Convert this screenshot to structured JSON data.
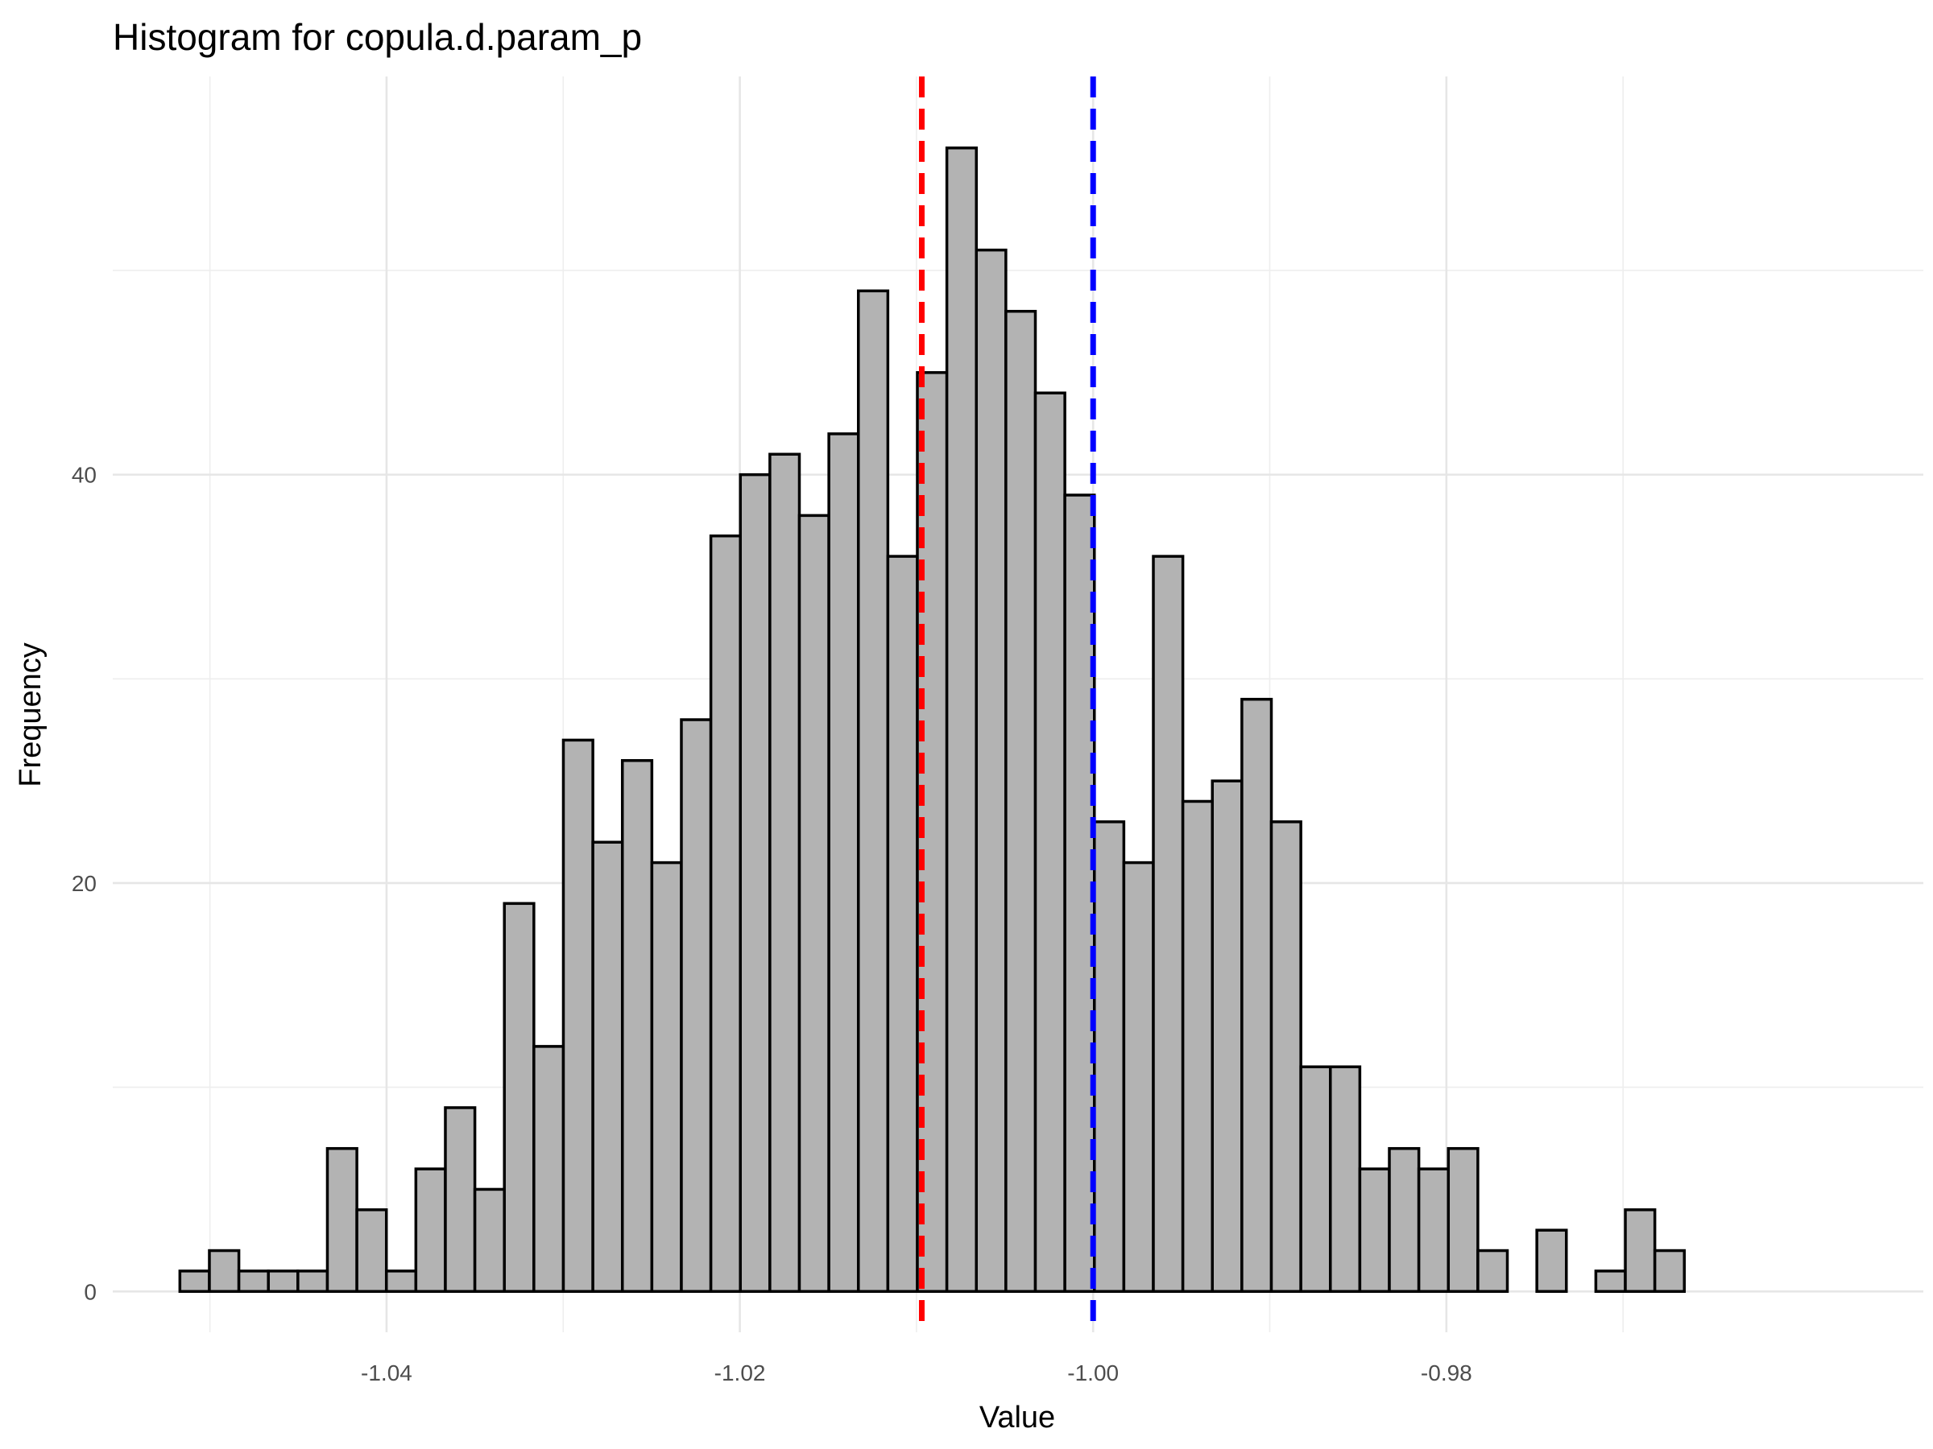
{
  "chart_data": {
    "type": "histogram",
    "title": "Histogram for copula.d.param_p",
    "xlabel": "Value",
    "ylabel": "Frequency",
    "xlim": [
      -1.0555,
      -0.953
    ],
    "ylim": [
      -2.0,
      59.5
    ],
    "x_ticks": [
      -1.04,
      -1.02,
      -1.0,
      -0.98
    ],
    "x_tick_labels": [
      "-1.04",
      "-1.02",
      "-1.00",
      "-0.98"
    ],
    "x_minor_ticks": [
      -1.05,
      -1.03,
      -1.01,
      -0.99,
      -0.97
    ],
    "y_ticks": [
      0,
      20,
      40
    ],
    "y_tick_labels": [
      "0",
      "20",
      "40"
    ],
    "y_minor_ticks": [
      10,
      30,
      50
    ],
    "grid": true,
    "bar_fill": "#b3b3b3",
    "bar_outline": "#000000",
    "bin_start": -1.0517,
    "bin_width": 0.00167,
    "counts": [
      1,
      2,
      1,
      1,
      1,
      7,
      4,
      1,
      6,
      9,
      5,
      19,
      12,
      27,
      22,
      26,
      21,
      28,
      37,
      40,
      41,
      38,
      42,
      49,
      36,
      45,
      56,
      51,
      48,
      44,
      39,
      23,
      21,
      36,
      24,
      25,
      29,
      23,
      11,
      11,
      6,
      7,
      6,
      7,
      2,
      0,
      3,
      0,
      1,
      4,
      2
    ],
    "reference_lines": [
      {
        "x": -1.0097,
        "color": "#ff0000",
        "style": "dashed"
      },
      {
        "x": -1.0,
        "color": "#0000ff",
        "style": "dashed"
      }
    ]
  }
}
